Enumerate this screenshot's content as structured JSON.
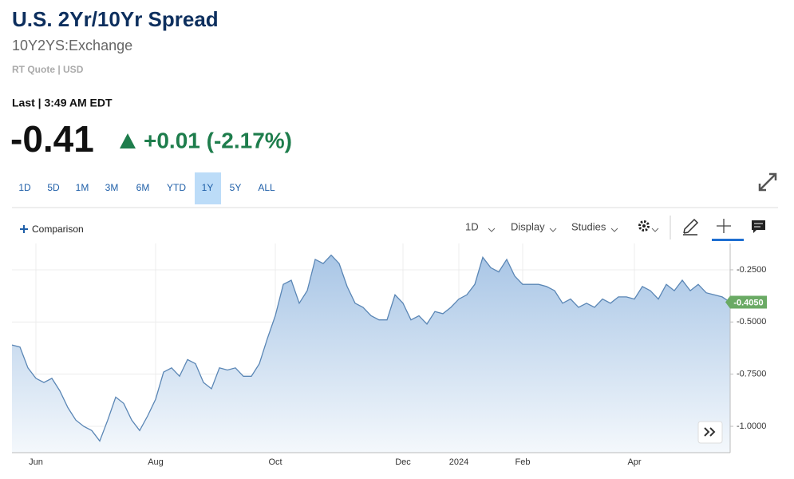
{
  "header": {
    "title": "U.S. 2Yr/10Yr Spread",
    "symbol": "10Y2YS:Exchange",
    "quote_info": "RT Quote | USD",
    "last_label": "Last | 3:49 AM EDT",
    "price": "-0.41",
    "change": "+0.01 (-2.17%)"
  },
  "ranges": [
    "1D",
    "5D",
    "1M",
    "3M",
    "6M",
    "YTD",
    "1Y",
    "5Y",
    "ALL"
  ],
  "active_range_index": 6,
  "toolbar": {
    "comparison": "Comparison",
    "interval": "1D",
    "display": "Display",
    "studies": "Studies"
  },
  "chart_data": {
    "type": "area",
    "color": "#5a86b5",
    "categories": [
      null,
      null,
      null,
      "Jun",
      null,
      null,
      null,
      null,
      null,
      null,
      null,
      null,
      null,
      null,
      null,
      null,
      null,
      null,
      "Aug",
      null,
      null,
      null,
      null,
      null,
      null,
      null,
      null,
      null,
      null,
      null,
      null,
      null,
      null,
      "Oct",
      null,
      null,
      null,
      null,
      null,
      null,
      null,
      null,
      null,
      null,
      null,
      null,
      null,
      null,
      null,
      "Dec",
      null,
      null,
      null,
      null,
      null,
      null,
      "2024",
      null,
      null,
      null,
      null,
      null,
      null,
      null,
      "Feb",
      null,
      null,
      null,
      null,
      null,
      null,
      null,
      null,
      null,
      null,
      null,
      null,
      null,
      "Apr",
      null,
      null,
      null,
      null,
      null,
      null,
      null,
      null,
      null,
      null,
      null,
      null
    ],
    "values": [
      -0.61,
      -0.62,
      -0.72,
      -0.77,
      -0.79,
      -0.77,
      -0.83,
      -0.91,
      -0.97,
      -1.0,
      -1.02,
      -1.07,
      -0.97,
      -0.86,
      -0.89,
      -0.97,
      -1.02,
      -0.95,
      -0.87,
      -0.74,
      -0.72,
      -0.76,
      -0.68,
      -0.7,
      -0.79,
      -0.82,
      -0.72,
      -0.73,
      -0.72,
      -0.76,
      -0.76,
      -0.7,
      -0.58,
      -0.47,
      -0.32,
      -0.3,
      -0.41,
      -0.35,
      -0.2,
      -0.22,
      -0.18,
      -0.22,
      -0.33,
      -0.41,
      -0.43,
      -0.47,
      -0.49,
      -0.49,
      -0.37,
      -0.41,
      -0.49,
      -0.47,
      -0.51,
      -0.45,
      -0.46,
      -0.43,
      -0.39,
      -0.37,
      -0.32,
      -0.19,
      -0.24,
      -0.26,
      -0.2,
      -0.28,
      -0.32,
      -0.32,
      -0.32,
      -0.33,
      -0.35,
      -0.41,
      -0.39,
      -0.43,
      -0.41,
      -0.43,
      -0.39,
      -0.41,
      -0.38,
      -0.38,
      -0.39,
      -0.33,
      -0.35,
      -0.39,
      -0.32,
      -0.35,
      -0.3,
      -0.35,
      -0.32,
      -0.36,
      -0.37,
      -0.38,
      -0.405
    ],
    "ylim": [
      -1.126,
      -0.124
    ],
    "yticks": [
      {
        "value": -0.25,
        "label": "-0.2500"
      },
      {
        "value": -0.5,
        "label": "-0.5000"
      },
      {
        "value": -0.75,
        "label": "-0.7500"
      },
      {
        "value": -1.0,
        "label": "-1.0000"
      }
    ],
    "last_label": {
      "value": -0.405,
      "label": "-0.4050"
    },
    "grid": true
  }
}
